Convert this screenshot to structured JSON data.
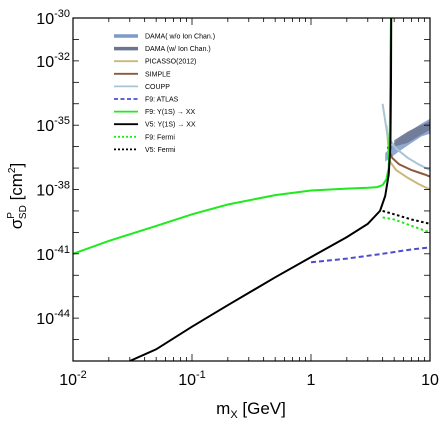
{
  "chart_data": {
    "type": "line",
    "title": "",
    "xlabel": "m",
    "xlabel_sub": "X",
    "xlabel_unit": " [GeV]",
    "ylabel_sigma": "σ",
    "ylabel_sup": "P",
    "ylabel_sub": "SD",
    "ylabel_unit": " [cm",
    "ylabel_unit_sup": "2",
    "ylabel_close": "]",
    "x_scale": "log",
    "y_scale": "log",
    "xlim": [
      0.01,
      10
    ],
    "ylim": [
      1e-46,
      1e-30
    ],
    "x_ticks": [
      {
        "value": 0.01,
        "base": "10",
        "exp": "-2"
      },
      {
        "value": 0.1,
        "base": "10",
        "exp": "-1"
      },
      {
        "value": 1,
        "base": "1",
        "exp": ""
      },
      {
        "value": 10,
        "base": "10",
        "exp": ""
      }
    ],
    "y_ticks": [
      {
        "value": 1e-30,
        "base": "10",
        "exp": "-30"
      },
      {
        "value": 1e-32,
        "base": "10",
        "exp": "-32"
      },
      {
        "value": 1e-35,
        "base": "10",
        "exp": "-35"
      },
      {
        "value": 1e-38,
        "base": "10",
        "exp": "-38"
      },
      {
        "value": 1e-41,
        "base": "10",
        "exp": "-41"
      },
      {
        "value": 1e-44,
        "base": "10",
        "exp": "-44"
      }
    ],
    "legend_position": "top-left",
    "series": [
      {
        "name": "DAMA( w/o Ion Chan.)",
        "color": "#7d9ac8",
        "style": "band",
        "x": [
          4.2,
          5.5,
          7.0,
          8.5,
          10.0,
          10.0,
          8.5,
          7.0,
          5.5,
          4.2
        ],
        "y": [
          5e-37,
          2.5e-36,
          6e-36,
          1.2e-35,
          2e-35,
          4e-36,
          3e-36,
          1.5e-36,
          6e-37,
          2e-37
        ]
      },
      {
        "name": "DAMA (w/ Ion Chan.)",
        "color": "#6c7590",
        "style": "band",
        "x": [
          5.0,
          6.5,
          8.0,
          10.0,
          10.0,
          8.0,
          6.5,
          5.0
        ],
        "y": [
          2e-36,
          5e-36,
          9e-36,
          1.5e-35,
          6e-36,
          3e-36,
          1.5e-36,
          1e-36
        ]
      },
      {
        "name": "PICASSO(2012)",
        "color": "#c8b97a",
        "style": "solid",
        "x": [
          4.3,
          4.6,
          5.2,
          6.5,
          8.0,
          10.0
        ],
        "y": [
          1e-35,
          2e-37,
          8e-38,
          3.5e-38,
          1.8e-38,
          1e-38
        ]
      },
      {
        "name": "SIMPLE",
        "color": "#8b5a3c",
        "style": "solid",
        "x": [
          4.4,
          4.8,
          5.5,
          7.0,
          9.0,
          10.0
        ],
        "y": [
          1e-36,
          3e-37,
          1.5e-37,
          8e-38,
          5e-38,
          4e-38
        ]
      },
      {
        "name": "COUPP",
        "color": "#a9c4d4",
        "style": "solid",
        "x": [
          4.0,
          4.4,
          5.2,
          6.5,
          8.0,
          10.0
        ],
        "y": [
          1e-34,
          3e-36,
          8e-37,
          3e-37,
          1.5e-37,
          8e-38
        ]
      },
      {
        "name": "F9: ATLAS",
        "color": "#4d4dcc",
        "style": "dashed",
        "x": [
          1.0,
          2.0,
          4.0,
          7.0,
          10.0
        ],
        "y": [
          4e-42,
          6e-42,
          1e-41,
          1.6e-41,
          2e-41
        ]
      },
      {
        "name": "F9: Υ(1S) → XX",
        "color": "#1eea1e",
        "style": "solid",
        "x": [
          0.01,
          0.02,
          0.05,
          0.1,
          0.2,
          0.5,
          1.0,
          2.0,
          3.0,
          3.6,
          4.0,
          4.3,
          4.5,
          4.6,
          4.65,
          4.7
        ],
        "y": [
          1e-41,
          4e-41,
          2e-40,
          7e-40,
          2e-39,
          5.5e-39,
          9e-39,
          1.1e-38,
          1.2e-38,
          1.3e-38,
          1.6e-38,
          3e-38,
          1e-37,
          1e-35,
          1e-32,
          1e-30
        ]
      },
      {
        "name": "V5: Υ(1S) → XX",
        "color": "#000000",
        "style": "solid",
        "x": [
          0.03,
          0.05,
          0.1,
          0.2,
          0.5,
          1.0,
          2.0,
          3.0,
          3.8,
          4.2,
          4.5,
          4.65,
          4.7,
          4.72
        ],
        "y": [
          1e-46,
          3.5e-46,
          4e-45,
          4e-44,
          8e-43,
          7e-42,
          6e-41,
          2.5e-40,
          1e-39,
          5e-39,
          5e-38,
          1e-36,
          1e-33,
          1e-30
        ]
      },
      {
        "name": "F9: Fermi",
        "color": "#1eea1e",
        "style": "dotted",
        "x": [
          4.0,
          5.0,
          7.0,
          10.0
        ],
        "y": [
          5e-40,
          4e-40,
          2e-40,
          1e-40
        ]
      },
      {
        "name": "V5: Fermi",
        "color": "#000000",
        "style": "dotted",
        "x": [
          4.0,
          5.0,
          7.0,
          10.0
        ],
        "y": [
          1e-39,
          7e-40,
          4e-40,
          2.5e-40
        ]
      }
    ]
  }
}
